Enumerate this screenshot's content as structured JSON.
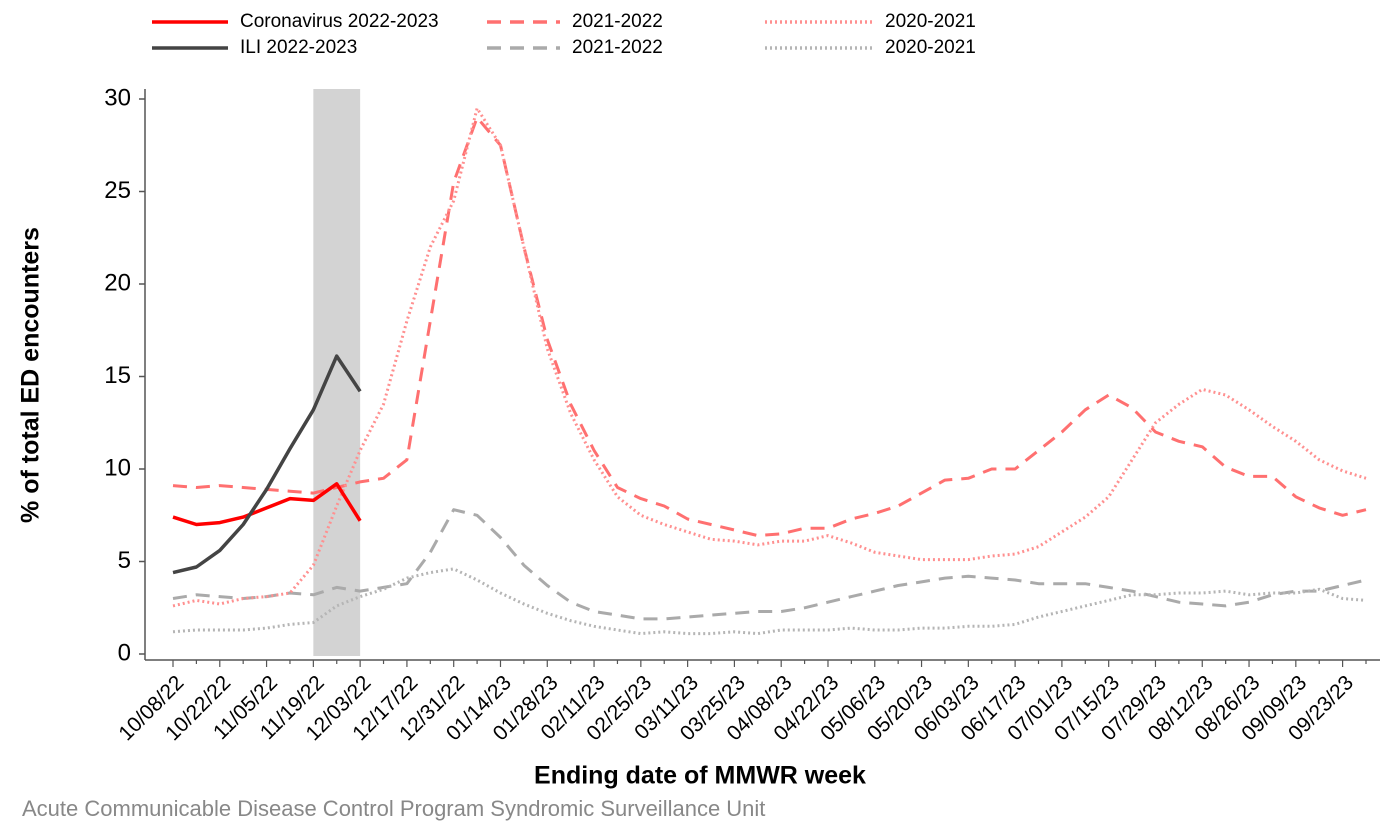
{
  "chart_data": {
    "type": "line",
    "y_axis_label": "% of total ED encounters",
    "x_axis_label": "Ending date of MMWR week",
    "footnote": "Acute Communicable Disease Control Program Syndromic Surveillance Unit",
    "categories": [
      "10/08/22",
      null,
      "10/22/22",
      null,
      "11/05/22",
      null,
      "11/19/22",
      null,
      "12/03/22",
      null,
      "12/17/22",
      null,
      "12/31/22",
      null,
      "01/14/23",
      null,
      "01/28/23",
      null,
      "02/11/23",
      null,
      "02/25/23",
      null,
      "03/11/23",
      null,
      "03/25/23",
      null,
      "04/08/23",
      null,
      "04/22/23",
      null,
      "05/06/23",
      null,
      "05/20/23",
      null,
      "06/03/23",
      null,
      "06/17/23",
      null,
      "07/01/23",
      null,
      "07/15/23",
      null,
      "07/29/23",
      null,
      "08/12/23",
      null,
      "08/26/23",
      null,
      "09/09/23",
      null,
      "09/23/23",
      null
    ],
    "shaded_range": [
      "11/19/22",
      "12/03/22"
    ],
    "shade_color": "#d3d3d3",
    "ylim": [
      0,
      30
    ],
    "yticks": [
      0,
      5,
      10,
      15,
      20,
      25,
      30
    ],
    "series": [
      {
        "name": "Coronavirus 2022-2023",
        "color": "#ff0000",
        "style": "solid",
        "values": [
          7.4,
          7.0,
          7.1,
          7.4,
          7.9,
          8.4,
          8.3,
          9.2,
          7.2,
          null,
          null,
          null,
          null,
          null,
          null,
          null,
          null,
          null,
          null,
          null,
          null,
          null,
          null,
          null,
          null,
          null,
          null,
          null,
          null,
          null,
          null,
          null,
          null,
          null,
          null,
          null,
          null,
          null,
          null,
          null,
          null,
          null,
          null,
          null,
          null,
          null,
          null,
          null,
          null,
          null,
          null,
          null
        ]
      },
      {
        "name": "ILI 2022-2023",
        "color": "#444444",
        "style": "solid",
        "values": [
          4.4,
          4.7,
          5.6,
          7.0,
          8.9,
          11.1,
          13.2,
          16.1,
          14.2,
          null,
          null,
          null,
          null,
          null,
          null,
          null,
          null,
          null,
          null,
          null,
          null,
          null,
          null,
          null,
          null,
          null,
          null,
          null,
          null,
          null,
          null,
          null,
          null,
          null,
          null,
          null,
          null,
          null,
          null,
          null,
          null,
          null,
          null,
          null,
          null,
          null,
          null,
          null,
          null,
          null,
          null,
          null
        ]
      },
      {
        "name": "2021-2022",
        "color": "#ff7070",
        "style": "dashed",
        "values": [
          9.1,
          9.0,
          9.1,
          9.0,
          8.9,
          8.8,
          8.7,
          9.0,
          9.3,
          9.5,
          10.5,
          18,
          25.5,
          29,
          27.5,
          22,
          17,
          13.5,
          11,
          9,
          8.4,
          8,
          7.3,
          7,
          6.7,
          6.4,
          6.5,
          6.8,
          6.8,
          7.3,
          7.6,
          8.0,
          8.7,
          9.4,
          9.5,
          10.0,
          10.0,
          11,
          12,
          13.2,
          14,
          13.3,
          12,
          11.5,
          11.2,
          10.1,
          9.6,
          9.6,
          8.5,
          7.9,
          7.5,
          7.8
        ]
      },
      {
        "name": "2021-2022",
        "color": "#aaaaaa",
        "style": "dashed",
        "values": [
          3.0,
          3.2,
          3.1,
          3.0,
          3.1,
          3.3,
          3.2,
          3.6,
          3.4,
          3.6,
          3.8,
          5.5,
          7.8,
          7.5,
          6.3,
          4.8,
          3.7,
          2.8,
          2.3,
          2.1,
          1.9,
          1.9,
          2.0,
          2.1,
          2.2,
          2.3,
          2.3,
          2.5,
          2.8,
          3.1,
          3.4,
          3.7,
          3.9,
          4.1,
          4.2,
          4.1,
          4.0,
          3.8,
          3.8,
          3.8,
          3.6,
          3.4,
          3.1,
          2.8,
          2.7,
          2.6,
          2.8,
          3.2,
          3.4,
          3.4,
          3.7,
          4.0
        ]
      },
      {
        "name": "2020-2021",
        "color": "#ff9090",
        "style": "dotted",
        "values": [
          2.6,
          2.9,
          2.7,
          3.0,
          3.1,
          3.3,
          4.8,
          8.0,
          11,
          13.5,
          18,
          22,
          24.5,
          29.5,
          27.5,
          22,
          16.5,
          13,
          10.5,
          8.5,
          7.5,
          7,
          6.6,
          6.2,
          6.1,
          5.9,
          6.1,
          6.1,
          6.4,
          6.0,
          5.5,
          5.3,
          5.1,
          5.1,
          5.1,
          5.3,
          5.4,
          5.8,
          6.6,
          7.4,
          8.5,
          10.5,
          12.5,
          13.5,
          14.3,
          14.0,
          13.2,
          12.3,
          11.5,
          10.5,
          9.9,
          9.5
        ]
      },
      {
        "name": "2020-2021",
        "color": "#b5b5b5",
        "style": "dotted",
        "values": [
          1.2,
          1.3,
          1.3,
          1.3,
          1.4,
          1.6,
          1.7,
          2.6,
          3.1,
          3.5,
          4.1,
          4.4,
          4.6,
          4.0,
          3.3,
          2.7,
          2.2,
          1.8,
          1.5,
          1.3,
          1.1,
          1.2,
          1.1,
          1.1,
          1.2,
          1.1,
          1.3,
          1.3,
          1.3,
          1.4,
          1.3,
          1.3,
          1.4,
          1.4,
          1.5,
          1.5,
          1.6,
          2.0,
          2.3,
          2.6,
          2.9,
          3.2,
          3.2,
          3.3,
          3.3,
          3.4,
          3.2,
          3.3,
          3.3,
          3.5,
          3.0,
          2.9
        ]
      }
    ]
  }
}
